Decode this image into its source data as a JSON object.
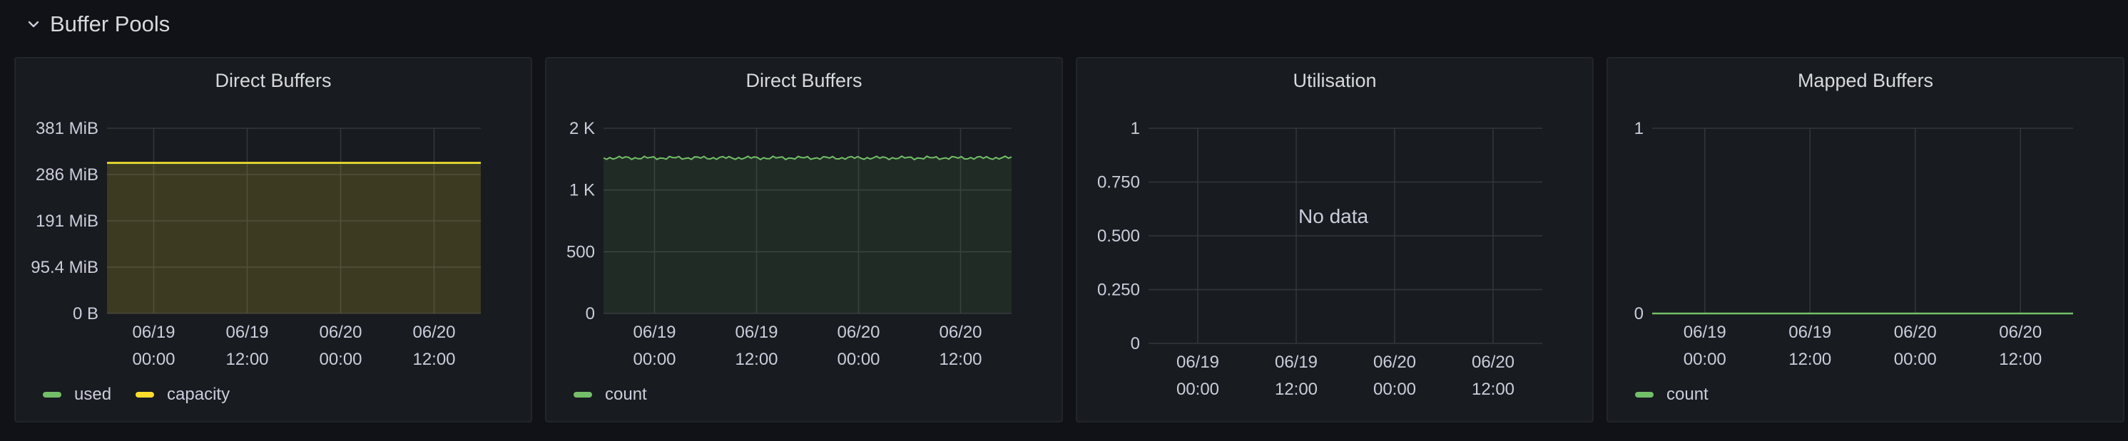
{
  "row": {
    "title": "Buffer Pools",
    "icon": "chevron-down-icon"
  },
  "colors": {
    "used": "#73bf69",
    "capacity": "#fade2a",
    "grid": "#34363d",
    "text": "#ccccdc"
  },
  "panels": [
    {
      "title": "Direct Buffers",
      "y_ticks": [
        "381 MiB",
        "286 MiB",
        "191 MiB",
        "95.4 MiB",
        "0 B"
      ],
      "x_ticks": [
        [
          "06/19",
          "00:00"
        ],
        [
          "06/19",
          "12:00"
        ],
        [
          "06/20",
          "00:00"
        ],
        [
          "06/20",
          "12:00"
        ]
      ],
      "legend": [
        {
          "label": "used",
          "color": "#73bf69"
        },
        {
          "label": "capacity",
          "color": "#fade2a"
        }
      ]
    },
    {
      "title": "Direct Buffers",
      "y_ticks": [
        "2 K",
        "1 K",
        "500",
        "0"
      ],
      "x_ticks": [
        [
          "06/19",
          "00:00"
        ],
        [
          "06/19",
          "12:00"
        ],
        [
          "06/20",
          "00:00"
        ],
        [
          "06/20",
          "12:00"
        ]
      ],
      "legend": [
        {
          "label": "count",
          "color": "#73bf69"
        }
      ]
    },
    {
      "title": "Utilisation",
      "y_ticks": [
        "1",
        "0.750",
        "0.500",
        "0.250",
        "0"
      ],
      "x_ticks": [
        [
          "06/19",
          "00:00"
        ],
        [
          "06/19",
          "12:00"
        ],
        [
          "06/20",
          "00:00"
        ],
        [
          "06/20",
          "12:00"
        ]
      ],
      "no_data": "No data"
    },
    {
      "title": "Mapped Buffers",
      "y_ticks": [
        "1",
        "0"
      ],
      "x_ticks": [
        [
          "06/19",
          "00:00"
        ],
        [
          "06/19",
          "12:00"
        ],
        [
          "06/20",
          "00:00"
        ],
        [
          "06/20",
          "12:00"
        ]
      ],
      "legend": [
        {
          "label": "count",
          "color": "#73bf69"
        }
      ]
    }
  ],
  "chart_data": [
    {
      "type": "area",
      "title": "Direct Buffers",
      "x": [
        "06/19 00:00",
        "06/19 12:00",
        "06/20 00:00",
        "06/20 12:00"
      ],
      "ylim": [
        0,
        381
      ],
      "y_unit": "MiB",
      "grid": true,
      "legend_position": "bottom-left",
      "series": [
        {
          "name": "used",
          "values": [
            309,
            309,
            309,
            309
          ]
        },
        {
          "name": "capacity",
          "values": [
            310,
            310,
            310,
            310
          ]
        }
      ]
    },
    {
      "type": "area",
      "title": "Direct Buffers",
      "x": [
        "06/19 00:00",
        "06/19 12:00",
        "06/20 00:00",
        "06/20 12:00"
      ],
      "ylim": [
        0,
        2000
      ],
      "grid": true,
      "legend_position": "bottom-left",
      "series": [
        {
          "name": "count",
          "values": [
            1680,
            1680,
            1680,
            1680
          ]
        }
      ]
    },
    {
      "type": "line",
      "title": "Utilisation",
      "x": [
        "06/19 00:00",
        "06/19 12:00",
        "06/20 00:00",
        "06/20 12:00"
      ],
      "ylim": [
        0,
        1
      ],
      "grid": true,
      "series": []
    },
    {
      "type": "line",
      "title": "Mapped Buffers",
      "x": [
        "06/19 00:00",
        "06/19 12:00",
        "06/20 00:00",
        "06/20 12:00"
      ],
      "ylim": [
        0,
        1
      ],
      "grid": true,
      "legend_position": "bottom-left",
      "series": [
        {
          "name": "count",
          "values": [
            0,
            0,
            0,
            0
          ]
        }
      ]
    }
  ]
}
